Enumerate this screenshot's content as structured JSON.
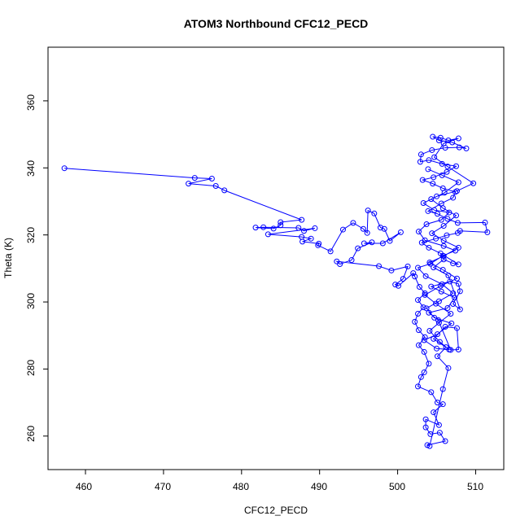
{
  "chart_data": {
    "type": "scatter",
    "title": "ATOM3 Northbound CFC12_PECD",
    "xlabel": "CFC12_PECD",
    "ylabel": "Theta (K)",
    "xlim": [
      455.2,
      513.6
    ],
    "ylim": [
      250,
      376
    ],
    "xticks": [
      "460",
      "470",
      "480",
      "490",
      "500",
      "510"
    ],
    "yticks": [
      "260",
      "280",
      "300",
      "320",
      "340",
      "360"
    ],
    "grid": false,
    "legend": "none",
    "style": "points connected by lines",
    "colors": {
      "series": "#0000ff",
      "axes": "#000000",
      "background": "#ffffff"
    },
    "series": [
      {
        "values": [
          [
            457.3,
            339.9
          ],
          [
            474.0,
            337.0
          ],
          [
            476.2,
            336.8
          ],
          [
            473.2,
            335.3
          ],
          [
            476.7,
            334.6
          ],
          [
            477.8,
            333.3
          ],
          [
            487.7,
            324.5
          ],
          [
            485.0,
            323.8
          ],
          [
            485.0,
            322.9
          ],
          [
            484.1,
            321.9
          ],
          [
            481.8,
            322.2
          ],
          [
            482.8,
            322.3
          ],
          [
            487.3,
            322.1
          ],
          [
            488.0,
            321.2
          ],
          [
            489.4,
            322.0
          ],
          [
            483.4,
            320.2
          ],
          [
            487.7,
            319.4
          ],
          [
            488.9,
            318.9
          ],
          [
            487.8,
            318.0
          ],
          [
            489.9,
            317.4
          ],
          [
            489.8,
            316.9
          ],
          [
            491.4,
            315.1
          ],
          [
            493.0,
            321.6
          ],
          [
            494.3,
            323.6
          ],
          [
            495.6,
            321.8
          ],
          [
            496.1,
            320.6
          ],
          [
            496.2,
            327.3
          ],
          [
            497.0,
            326.4
          ],
          [
            497.8,
            322.2
          ],
          [
            498.3,
            321.8
          ],
          [
            499.0,
            318.2
          ],
          [
            500.4,
            320.8
          ],
          [
            498.1,
            317.5
          ],
          [
            495.7,
            317.5
          ],
          [
            496.7,
            317.8
          ],
          [
            494.9,
            316.0
          ],
          [
            494.1,
            312.5
          ],
          [
            492.6,
            311.3
          ],
          [
            492.2,
            312.1
          ],
          [
            497.6,
            310.7
          ],
          [
            499.2,
            309.4
          ],
          [
            501.3,
            310.6
          ],
          [
            500.7,
            306.9
          ],
          [
            499.7,
            305.2
          ],
          [
            500.1,
            304.8
          ],
          [
            502.0,
            308.6
          ],
          [
            502.2,
            307.6
          ],
          [
            502.8,
            304.5
          ],
          [
            503.5,
            302.6
          ],
          [
            502.6,
            300.6
          ],
          [
            503.3,
            298.4
          ],
          [
            502.6,
            296.5
          ],
          [
            502.2,
            294.1
          ],
          [
            502.7,
            291.6
          ],
          [
            503.5,
            289.5
          ],
          [
            502.7,
            287.1
          ],
          [
            503.4,
            285.1
          ],
          [
            504.0,
            281.6
          ],
          [
            503.4,
            279.0
          ],
          [
            503.0,
            277.6
          ],
          [
            502.6,
            274.8
          ],
          [
            504.3,
            273.1
          ],
          [
            505.1,
            270.0
          ],
          [
            505.8,
            269.5
          ],
          [
            504.6,
            267.1
          ],
          [
            505.3,
            263.3
          ],
          [
            503.6,
            265.0
          ],
          [
            503.6,
            262.6
          ],
          [
            504.2,
            260.6
          ],
          [
            505.4,
            261.0
          ],
          [
            506.1,
            258.5
          ],
          [
            503.8,
            257.3
          ],
          [
            504.1,
            257.0
          ],
          [
            505.8,
            274.0
          ],
          [
            506.5,
            280.3
          ],
          [
            505.1,
            283.8
          ],
          [
            506.2,
            286.5
          ],
          [
            504.6,
            289.0
          ],
          [
            506.1,
            292.6
          ],
          [
            507.6,
            292.2
          ],
          [
            507.8,
            285.8
          ],
          [
            506.8,
            285.7
          ],
          [
            505.2,
            294.6
          ],
          [
            504.0,
            296.8
          ],
          [
            506.4,
            298.2
          ],
          [
            507.3,
            301.3
          ],
          [
            505.6,
            303.1
          ],
          [
            504.3,
            304.6
          ],
          [
            506.7,
            306.1
          ],
          [
            507.8,
            305.4
          ],
          [
            508.0,
            303.2
          ],
          [
            507.1,
            299.4
          ],
          [
            508.0,
            297.8
          ],
          [
            506.5,
            307.9
          ],
          [
            504.6,
            310.3
          ],
          [
            505.9,
            312.7
          ],
          [
            507.1,
            311.5
          ],
          [
            507.8,
            311.2
          ],
          [
            505.5,
            314.5
          ],
          [
            504.0,
            316.2
          ],
          [
            503.1,
            317.7
          ],
          [
            504.9,
            318.9
          ],
          [
            506.3,
            319.9
          ],
          [
            507.7,
            320.6
          ],
          [
            508.0,
            321.2
          ],
          [
            511.5,
            320.8
          ],
          [
            511.2,
            323.7
          ],
          [
            507.7,
            323.6
          ],
          [
            506.4,
            324.8
          ],
          [
            505.1,
            326.3
          ],
          [
            503.9,
            327.1
          ],
          [
            505.6,
            329.4
          ],
          [
            507.1,
            331.1
          ],
          [
            507.4,
            332.8
          ],
          [
            505.8,
            333.9
          ],
          [
            504.5,
            335.3
          ],
          [
            503.2,
            336.4
          ],
          [
            504.6,
            337.2
          ],
          [
            506.3,
            338.8
          ],
          [
            507.5,
            340.5
          ],
          [
            505.7,
            341.2
          ],
          [
            504.0,
            342.3
          ],
          [
            502.9,
            341.8
          ],
          [
            503.0,
            344.0
          ],
          [
            504.4,
            345.3
          ],
          [
            506.1,
            346.0
          ],
          [
            507.9,
            346.1
          ],
          [
            508.8,
            345.8
          ],
          [
            507.0,
            347.6
          ],
          [
            505.3,
            348.2
          ],
          [
            504.5,
            349.3
          ],
          [
            505.5,
            349.0
          ],
          [
            506.5,
            348.2
          ],
          [
            507.8,
            348.8
          ],
          [
            505.9,
            347.3
          ],
          [
            504.7,
            343.2
          ],
          [
            506.4,
            340.4
          ],
          [
            509.7,
            335.4
          ],
          [
            507.6,
            333.1
          ],
          [
            505.0,
            331.5
          ],
          [
            503.3,
            329.5
          ],
          [
            504.7,
            327.4
          ],
          [
            506.6,
            326.7
          ],
          [
            505.6,
            324.5
          ],
          [
            503.7,
            323.2
          ],
          [
            502.7,
            321.0
          ],
          [
            503.5,
            318.4
          ],
          [
            505.9,
            316.7
          ],
          [
            507.4,
            315.3
          ],
          [
            505.8,
            313.8
          ],
          [
            504.2,
            311.4
          ],
          [
            502.6,
            310.2
          ],
          [
            503.6,
            307.7
          ],
          [
            505.7,
            305.3
          ],
          [
            507.1,
            302.6
          ],
          [
            505.3,
            300.2
          ],
          [
            503.7,
            298.1
          ],
          [
            504.7,
            295.3
          ],
          [
            506.9,
            293.6
          ],
          [
            505.1,
            290.4
          ],
          [
            503.4,
            288.6
          ],
          [
            505.0,
            286.1
          ],
          [
            506.6,
            285.8
          ],
          [
            505.4,
            288.1
          ],
          [
            504.1,
            291.4
          ],
          [
            505.3,
            293.8
          ],
          [
            506.8,
            296.5
          ],
          [
            504.9,
            299.5
          ],
          [
            503.5,
            302.1
          ],
          [
            505.5,
            304.8
          ],
          [
            507.6,
            307.0
          ],
          [
            505.8,
            309.6
          ],
          [
            504.1,
            311.8
          ],
          [
            505.9,
            313.7
          ],
          [
            507.8,
            316.2
          ],
          [
            505.9,
            318.3
          ],
          [
            504.4,
            320.5
          ],
          [
            505.9,
            322.7
          ],
          [
            507.5,
            325.8
          ],
          [
            505.8,
            328.0
          ],
          [
            504.3,
            330.7
          ],
          [
            506.0,
            332.6
          ],
          [
            507.8,
            335.7
          ],
          [
            505.7,
            337.8
          ],
          [
            503.9,
            339.6
          ]
        ]
      }
    ]
  }
}
